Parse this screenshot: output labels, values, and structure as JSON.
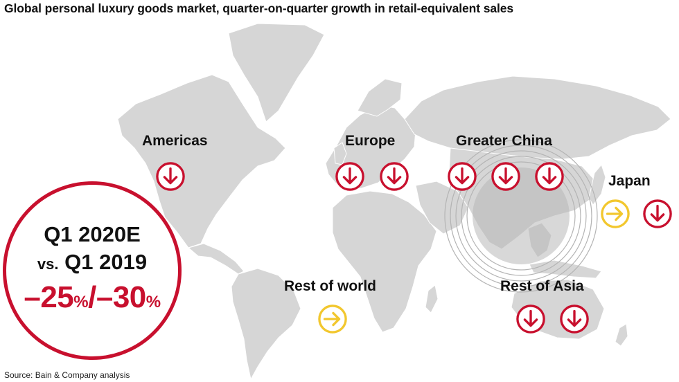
{
  "title": "Global personal luxury goods market, quarter-on-quarter growth in retail-equivalent sales",
  "source": "Source: Bain & Company analysis",
  "colors": {
    "decline": "#c8102e",
    "flat": "#f2c72e",
    "land": "#d6d6d6",
    "highlight": "#b4b4b4"
  },
  "callout": {
    "line1": "Q1 2020E",
    "vs_prefix": "vs.",
    "line2": "Q1 2019",
    "range_a": "–25",
    "range_pct_a": "%",
    "range_sep": "/",
    "range_b": "–30",
    "range_pct_b": "%"
  },
  "regions": [
    {
      "name": "Americas",
      "indicators": [
        "down-arrow-icon"
      ]
    },
    {
      "name": "Europe",
      "indicators": [
        "down-arrow-icon",
        "down-arrow-icon"
      ]
    },
    {
      "name": "Greater China",
      "indicators": [
        "down-arrow-icon",
        "down-arrow-icon",
        "down-arrow-icon"
      ]
    },
    {
      "name": "Japan",
      "indicators": [
        "right-arrow-icon",
        "down-arrow-icon"
      ]
    },
    {
      "name": "Rest of world",
      "indicators": [
        "right-arrow-icon"
      ]
    },
    {
      "name": "Rest of Asia",
      "indicators": [
        "down-arrow-icon",
        "down-arrow-icon"
      ]
    }
  ]
}
